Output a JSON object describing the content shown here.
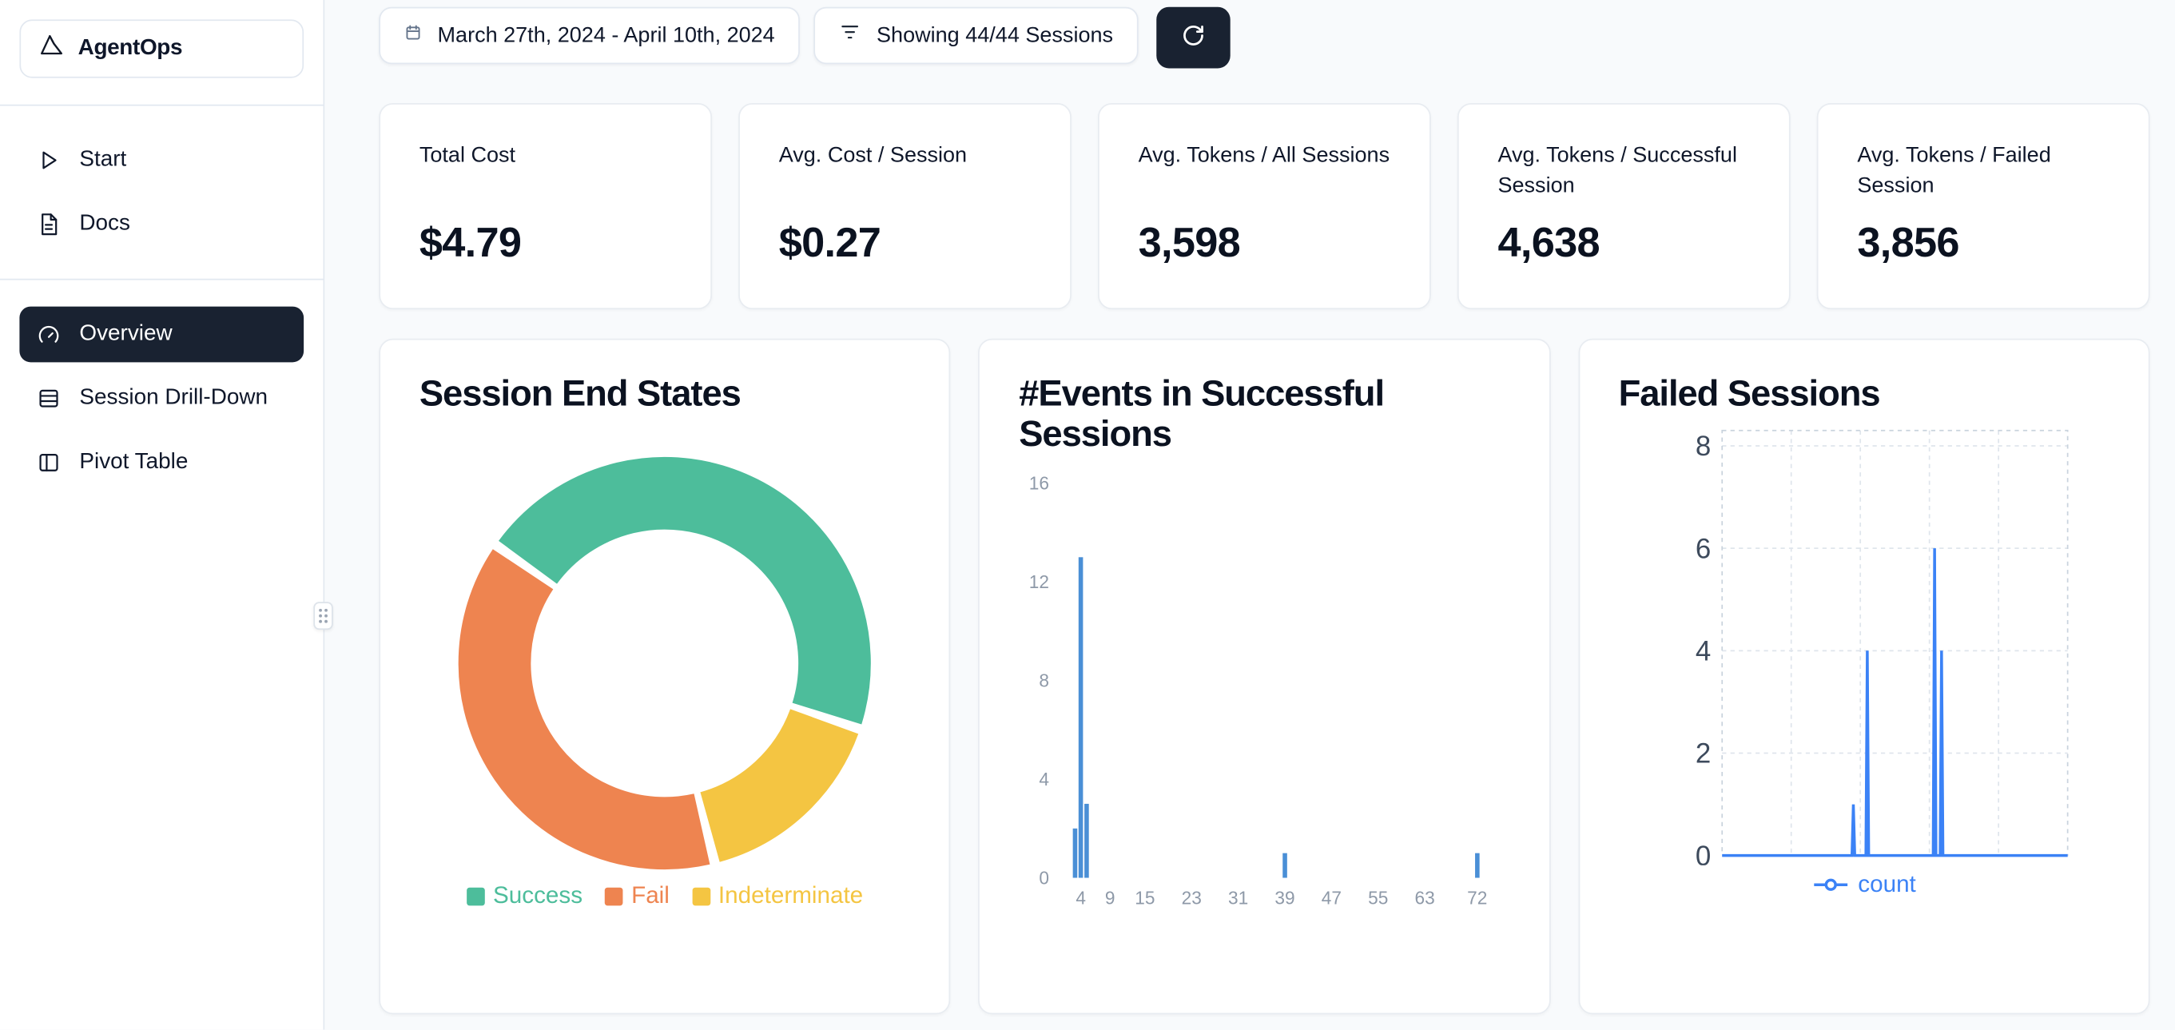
{
  "app": {
    "name": "AgentOps"
  },
  "sidebar": {
    "items": [
      {
        "label": "Start",
        "icon": "play-icon"
      },
      {
        "label": "Docs",
        "icon": "docs-icon"
      }
    ],
    "nav": [
      {
        "label": "Overview",
        "icon": "gauge-icon",
        "active": true
      },
      {
        "label": "Session Drill-Down",
        "icon": "sessions-list-icon",
        "active": false
      },
      {
        "label": "Pivot Table",
        "icon": "pivot-table-icon",
        "active": false
      }
    ]
  },
  "topbar": {
    "date_range": "March 27th, 2024 - April 10th, 2024",
    "sessions_filter": "Showing 44/44 Sessions"
  },
  "stats": [
    {
      "title": "Total Cost",
      "value": "$4.79"
    },
    {
      "title": "Avg. Cost / Session",
      "value": "$0.27"
    },
    {
      "title": "Avg. Tokens / All Sessions",
      "value": "3,598"
    },
    {
      "title": "Avg. Tokens / Successful Session",
      "value": "4,638"
    },
    {
      "title": "Avg. Tokens / Failed Session",
      "value": "3,856"
    }
  ],
  "colors": {
    "accent_dark": "#192231",
    "page_bg": "#f8fafc",
    "success": "#4dbd9b",
    "fail": "#ee8450",
    "indeterminate": "#f4c542",
    "bar_blue": "#4a8fd6",
    "line_blue": "#3b82f6"
  },
  "chart_data": [
    {
      "type": "pie",
      "donut": true,
      "title": "Session End States",
      "total_sessions": 44,
      "segments": [
        {
          "label": "Success",
          "value": 20,
          "color": "#4dbd9b"
        },
        {
          "label": "Fail",
          "value": 17,
          "color": "#ee8450"
        },
        {
          "label": "Indeterminate",
          "value": 7,
          "color": "#f4c542"
        }
      ],
      "visual_order": [
        "Success",
        "Indeterminate",
        "Fail"
      ],
      "start_angle_deg": 305,
      "legend_position": "bottom"
    },
    {
      "type": "bar",
      "title": "#Events in Successful Sessions",
      "xlabel": "",
      "ylabel": "",
      "bars": [
        {
          "x": 3,
          "count": 2
        },
        {
          "x": 4,
          "count": 13
        },
        {
          "x": 5,
          "count": 3
        },
        {
          "x": 39,
          "count": 1
        },
        {
          "x": 72,
          "count": 1
        }
      ],
      "x_ticks": [
        4,
        9,
        15,
        23,
        31,
        39,
        47,
        55,
        63,
        72
      ],
      "y_ticks": [
        0,
        4,
        8,
        12,
        16
      ],
      "xlim": [
        0,
        76
      ],
      "ylim": [
        0,
        16.5
      ],
      "bar_color": "#4a8fd6",
      "grid": false
    },
    {
      "type": "line",
      "title": "Failed Sessions",
      "series": [
        {
          "name": "count",
          "color": "#3b82f6",
          "points": [
            {
              "x": 0,
              "y": 0
            },
            {
              "x": 37.6,
              "y": 0
            },
            {
              "x": 38,
              "y": 1
            },
            {
              "x": 38.4,
              "y": 0
            },
            {
              "x": 41.6,
              "y": 0
            },
            {
              "x": 42,
              "y": 4
            },
            {
              "x": 42.4,
              "y": 0
            },
            {
              "x": 61.1,
              "y": 0
            },
            {
              "x": 61.5,
              "y": 6
            },
            {
              "x": 61.9,
              "y": 0
            },
            {
              "x": 63.1,
              "y": 0
            },
            {
              "x": 63.5,
              "y": 4
            },
            {
              "x": 63.9,
              "y": 0
            },
            {
              "x": 100,
              "y": 0
            }
          ]
        }
      ],
      "spikes": [
        {
          "x_pct": 38,
          "count": 1
        },
        {
          "x_pct": 42,
          "count": 4
        },
        {
          "x_pct": 61.5,
          "count": 6
        },
        {
          "x_pct": 63.5,
          "count": 4
        }
      ],
      "y_ticks": [
        0,
        2,
        4,
        6,
        8
      ],
      "ylim": [
        0,
        8.3
      ],
      "xlim": [
        0,
        100
      ],
      "grid": "dashed",
      "legend_position": "bottom"
    }
  ]
}
